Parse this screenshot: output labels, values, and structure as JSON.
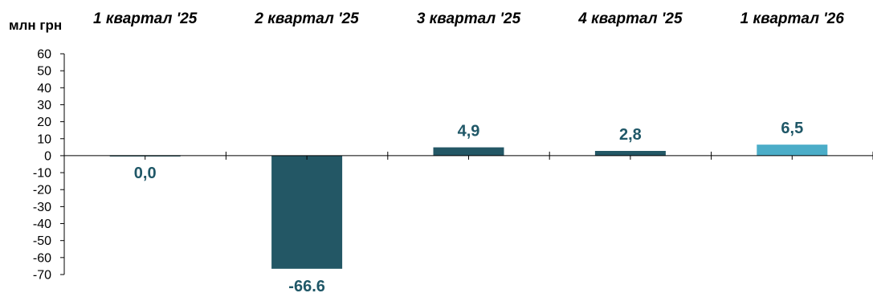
{
  "chart_data": {
    "type": "bar",
    "unit_label": "млн грн",
    "categories": [
      "1 квартал '25",
      "2 квартал '25",
      "3 квартал '25",
      "4 квартал '25",
      "1 квартал '26"
    ],
    "values": [
      0.0,
      -66.6,
      4.9,
      2.8,
      6.5
    ],
    "value_labels": [
      "0,0",
      "-66.6",
      "4,9",
      "2,8",
      "6,5"
    ],
    "bar_colors": [
      "#235765",
      "#235765",
      "#235765",
      "#235765",
      "#4badc8"
    ],
    "ylim": [
      -70,
      60
    ],
    "yticks": [
      60,
      50,
      40,
      30,
      20,
      10,
      0,
      -10,
      -20,
      -30,
      -40,
      -50,
      -60,
      -70
    ],
    "ytick_labels": [
      "60",
      "50",
      "40",
      "30",
      "20",
      "10",
      "0",
      "-10",
      "-20",
      "-30",
      "-40",
      "-50",
      "-60",
      "-70"
    ],
    "legend": "none",
    "grid": false
  }
}
